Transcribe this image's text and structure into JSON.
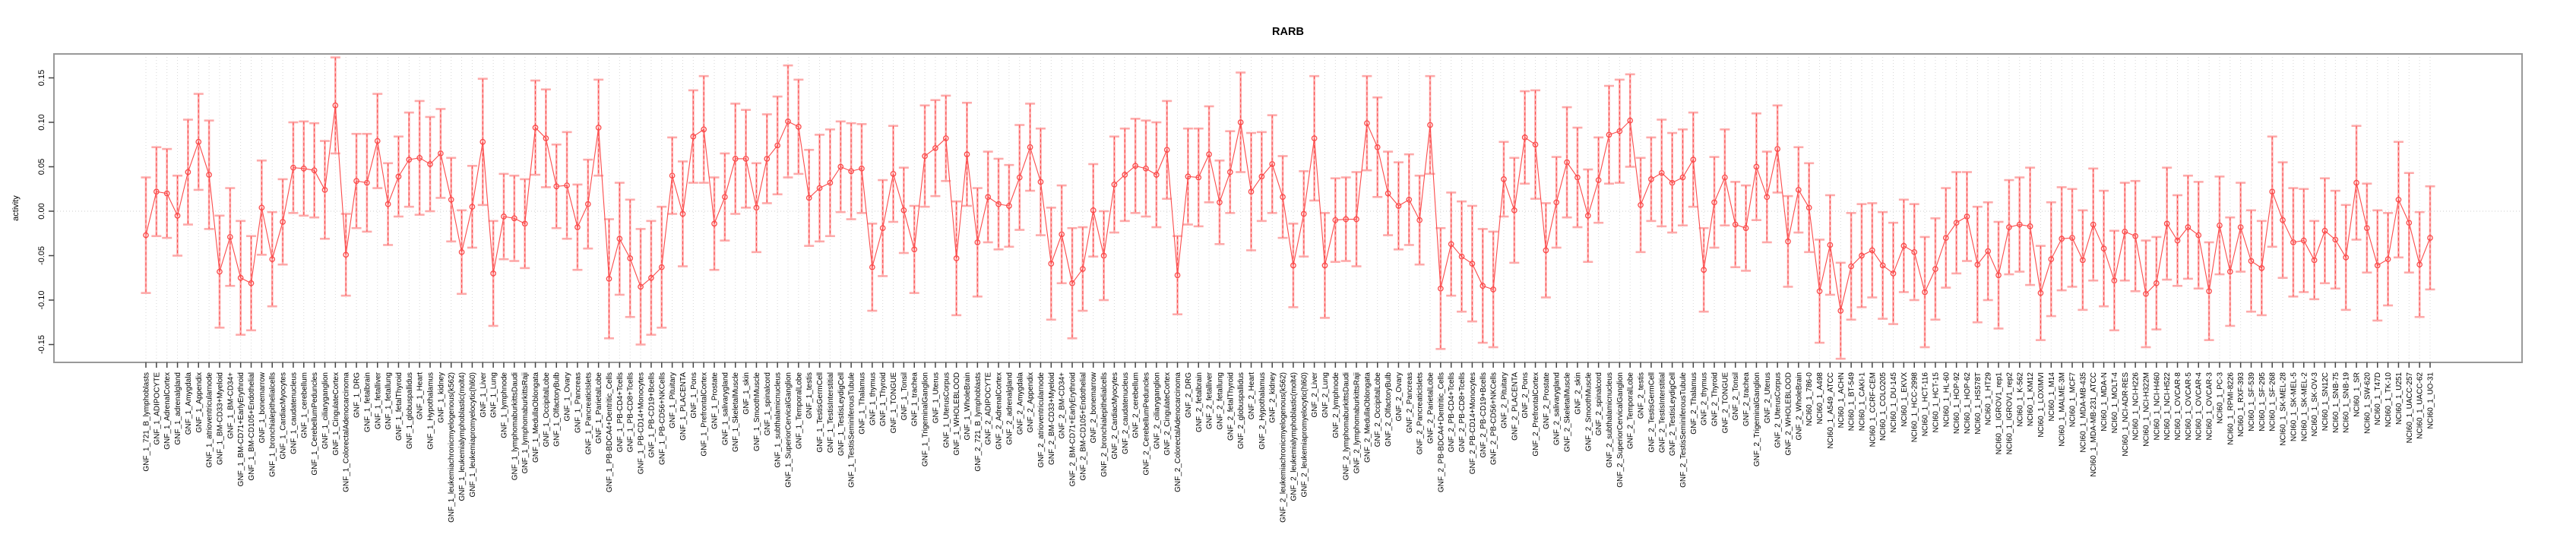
{
  "title": "RARB",
  "axes": {
    "ylabel": "activity",
    "yticks": [
      {
        "label": "0.15",
        "value": 0.15
      },
      {
        "label": "0.10",
        "value": 0.1
      },
      {
        "label": "0.05",
        "value": 0.05
      },
      {
        "label": "0.00",
        "value": 0.0
      },
      {
        "label": "-0.05",
        "value": -0.05
      },
      {
        "label": "-0.10",
        "value": -0.1
      },
      {
        "label": "-0.15",
        "value": -0.15
      }
    ]
  },
  "colors": {
    "series_red": "#fb4b4b",
    "error_bar_pink": "#fdaaaa",
    "grid_gray": "#d8d8d8",
    "zero_line_gray": "#cccccc",
    "box_gray": "#999999",
    "tick_gray": "#444444",
    "text_black": "#000000"
  },
  "chart_data": {
    "type": "line",
    "subtype": "points-with-error-bars",
    "title": "RARB",
    "xlabel": "",
    "ylabel": "activity",
    "ylim": [
      -0.17,
      0.18
    ],
    "grid": "vertical dotted gridline at every category; dotted horizontal line at y=0",
    "legend_position": "none",
    "marker": "open-circle",
    "categories": [
      "GNF_1_721_B_lymphoblasts",
      "GNF_1_ADIPOCYTE",
      "GNF_1_AdrenalCortex",
      "GNF_1_adrenalgland",
      "GNF_1_Amygdala",
      "GNF_1_Appendix",
      "GNF_1_atrioventricularnode",
      "GNF_1_BM-CD33+Myeloid",
      "GNF_1_BM-CD34+",
      "GNF_1_BM-CD71+EarlyErythroid",
      "GNF_1_BM-CD105+Endothelial",
      "GNF_1_bonemarrow",
      "GNF_1_bronchialepithelialcells",
      "GNF_1_CardiacMyocytes",
      "GNF_1_caudatenucleus",
      "GNF_1_cerebellum",
      "GNF_1_CerebellumPeduncles",
      "GNF_1_ciliaryganglion",
      "GNF_1_CingulateCortex",
      "GNF_1_ColorectalAdenocarcinoma",
      "GNF_1_DRG",
      "GNF_1_fetalbrain",
      "GNF_1_fetalliver",
      "GNF_1_fetallung",
      "GNF_1_fetalThyroid",
      "GNF_1_globuspallidus",
      "GNF_1_Heart",
      "GNF_1_Hypothalamus",
      "GNF_1_kidney",
      "GNF_1_leukemiachronicmyelogenous(k562)",
      "GNF_1_leukemialymphoblastic(molt4)",
      "GNF_1_leukemiapromyelocytic(hl60)",
      "GNF_1_Liver",
      "GNF_1_Lung",
      "GNF_1_lymphnode",
      "GNF_1_lymphomaburkittsDaudi",
      "GNF_1_lymphomaburkittsRaji",
      "GNF_1_MedullaOblongata",
      "GNF_1_OccipitalLobe",
      "GNF_1_OlfactoryBulb",
      "GNF_1_Ovary",
      "GNF_1_Pancreas",
      "GNF_1_PancreaticIslets",
      "GNF_1_ParietalLobe",
      "GNF_1_PB-BDCA4+Dentritic_Cells",
      "GNF_1_PB-CD4+Tcells",
      "GNF_1_PB-CD8+Tcells",
      "GNF_1_PB-CD14+Monocytes",
      "GNF_1_PB-CD19+Bcells",
      "GNF_1_PB-CD56+NKCells",
      "GNF_1_Pituitary",
      "GNF_1_PLACENTA",
      "GNF_1_Pons",
      "GNF_1_PrefrontalCortex",
      "GNF_1_Prostate",
      "GNF_1_salivarygland",
      "GNF_1_SkeletalMuscle",
      "GNF_1_skin",
      "GNF_1_SmoothMuscle",
      "GNF_1_spinalcord",
      "GNF_1_subthalamicnucleus",
      "GNF_1_SuperiorCervicalGanglion",
      "GNF_1_TemporalLobe",
      "GNF_1_testis",
      "GNF_1_TestisGermCell",
      "GNF_1_TestisInterstitial",
      "GNF_1_TestisLeydigCell",
      "GNF_1_TestisSeminiferousTubule",
      "GNF_1_Thalamus",
      "GNF_1_thymus",
      "GNF_1_Thyroid",
      "GNF_1_TONGUE",
      "GNF_1_Tonsil",
      "GNF_1_trachea",
      "GNF_1_TrigeminalGanglion",
      "GNF_1_Uterus",
      "GNF_1_UterusCorpus",
      "GNF_1_WHOLEBLOOD",
      "GNF_1_WholeBrain",
      "GNF_2_721_B_lymphoblasts",
      "GNF_2_ADIPOCYTE",
      "GNF_2_AdrenalCortex",
      "GNF_2_adrenalgland",
      "GNF_2_Amygdala",
      "GNF_2_Appendix",
      "GNF_2_atrioventricularnode",
      "GNF_2_BM-CD33+Myeloid",
      "GNF_2_BM-CD34+",
      "GNF_2_BM-CD71+EarlyErythroid",
      "GNF_2_BM-CD105+Endothelial",
      "GNF_2_bonemarrow",
      "GNF_2_bronchialepithelialcells",
      "GNF_2_CardiacMyocytes",
      "GNF_2_caudatenucleus",
      "GNF_2_cerebellum",
      "GNF_2_CerebellumPeduncles",
      "GNF_2_ciliaryganglion",
      "GNF_2_CingulateCortex",
      "GNF_2_ColorectalAdenocarcinoma",
      "GNF_2_DRG",
      "GNF_2_fetalbrain",
      "GNF_2_fetalliver",
      "GNF_2_fetallung",
      "GNF_2_fetalThyroid",
      "GNF_2_globuspallidus",
      "GNF_2_Heart",
      "GNF_2_Hypothalamus",
      "GNF_2_kidney",
      "GNF_2_leukemiachronicmyelogenous(k562)",
      "GNF_2_leukemialymphoblastic(molt4)",
      "GNF_2_leukemiapromyelocytic(hl60)",
      "GNF_2_Liver",
      "GNF_2_Lung",
      "GNF_2_lymphnode",
      "GNF_2_lymphomaburkittsDaudi",
      "GNF_2_lymphomaburkittsRaji",
      "GNF_2_MedullaOblongata",
      "GNF_2_OccipitalLobe",
      "GNF_2_OlfactoryBulb",
      "GNF_2_Ovary",
      "GNF_2_Pancreas",
      "GNF_2_PancreaticIslets",
      "GNF_2_ParietalLobe",
      "GNF_2_PB-BDCA4+Dentritic_Cells",
      "GNF_2_PB-CD4+Tcells",
      "GNF_2_PB-CD8+Tcells",
      "GNF_2_PB-CD14+Monocytes",
      "GNF_2_PB-CD19+Bcells",
      "GNF_2_PB-CD56+NKCells",
      "GNF_2_Pituitary",
      "GNF_2_PLACENTA",
      "GNF_2_Pons",
      "GNF_2_PrefrontalCortex",
      "GNF_2_Prostate",
      "GNF_2_salivarygland",
      "GNF_2_SkeletalMuscle",
      "GNF_2_skin",
      "GNF_2_SmoothMuscle",
      "GNF_2_spinalcord",
      "GNF_2_subthalamicnucleus",
      "GNF_2_SuperiorCervicalGanglion",
      "GNF_2_TemporalLobe",
      "GNF_2_testis",
      "GNF_2_TestisGermCell",
      "GNF_2_TestisInterstitial",
      "GNF_2_TestisLeydigCell",
      "GNF_2_TestisSeminiferousTubule",
      "GNF_2_Thalamus",
      "GNF_2_thymus",
      "GNF_2_Thyroid",
      "GNF_2_TONGUE",
      "GNF_2_Tonsil",
      "GNF_2_trachea",
      "GNF_2_TrigeminalGanglion",
      "GNF_2_Uterus",
      "GNF_2_UterusCorpus",
      "GNF_2_WHOLEBLOOD",
      "GNF_2_WholeBrain",
      "NCI60_1_786-0",
      "NCI60_1_A498",
      "NCI60_1_A549_ATCC",
      "NCI60_1_ACHN",
      "NCI60_1_BT-549",
      "NCI60_1_CAKI-1",
      "NCI60_1_CCRF-CEM",
      "NCI60_1_COLO205",
      "NCI60_1_DU-145",
      "NCI60_1_EKVX",
      "NCI60_1_HCC-2998",
      "NCI60_1_HCT-116",
      "NCI60_1_HCT-15",
      "NCI60_1_HL-60",
      "NCI60_1_HOP-92",
      "NCI60_1_HOP-62",
      "NCI60_1_HS578T",
      "NCI60_1_HT29",
      "NCI60_1_IGROV1_rep1",
      "NCI60_1_IGROV1_rep2",
      "NCI60_1_K-562",
      "NCI60_1_KM12",
      "NCI60_1_LOXIMVI",
      "NCI60_1_M14",
      "NCI60_1_MALME-3M",
      "NCI60_1_MCF7",
      "NCI60_1_MDA-MB-435",
      "NCI60_1_MDA-MB-231_ATCC",
      "NCI60_1_MDA-N",
      "NCI60_1_MOLT-4",
      "NCI60_1_NCI-ADR-RES",
      "NCI60_1_NCI-H226",
      "NCI60_1_NCI-H322M",
      "NCI60_1_NCI-H460",
      "NCI60_1_NCI-H522",
      "NCI60_1_OVCAR-8",
      "NCI60_1_OVCAR-5",
      "NCI60_1_OVCAR-4",
      "NCI60_1_OVCAR-3",
      "NCI60_1_PC-3",
      "NCI60_1_RPMI-8226",
      "NCI60_1_RXF-393",
      "NCI60_1_SF-539",
      "NCI60_1_SF-295",
      "NCI60_1_SF-268",
      "NCI60_1_SK-MEL-28",
      "NCI60_1_SK-MEL-5",
      "NCI60_1_SK-MEL-2",
      "NCI60_1_SK-OV-3",
      "NCI60_1_SN12C",
      "NCI60_1_SNB-75",
      "NCI60_1_SNB-19",
      "NCI60_1_SR",
      "NCI60_1_SW-620",
      "NCI60_1_T47D",
      "NCI60_1_TK-10",
      "NCI60_1_U251",
      "NCI60_1_UACC-257",
      "NCI60_1_UACC-62",
      "NCI60_1_UO-31"
    ],
    "series": [
      {
        "name": "activity",
        "values": [
          -0.027,
          0.022,
          0.02,
          -0.005,
          0.044,
          0.078,
          0.041,
          -0.068,
          -0.029,
          -0.075,
          -0.081,
          0.004,
          -0.054,
          -0.012,
          0.049,
          0.048,
          0.046,
          0.024,
          0.119,
          -0.049,
          0.034,
          0.032,
          0.079,
          0.008,
          0.039,
          0.058,
          0.06,
          0.053,
          0.065,
          0.013,
          -0.046,
          0.005,
          0.078,
          -0.07,
          -0.006,
          -0.008,
          -0.014,
          0.094,
          0.082,
          0.028,
          0.029,
          -0.018,
          0.008,
          0.094,
          -0.076,
          -0.031,
          -0.053,
          -0.085,
          -0.075,
          -0.063,
          0.04,
          -0.003,
          0.084,
          0.092,
          -0.014,
          0.016,
          0.059,
          0.059,
          0.004,
          0.059,
          0.074,
          0.101,
          0.095,
          0.015,
          0.026,
          0.032,
          0.05,
          0.045,
          0.048,
          -0.063,
          -0.019,
          0.042,
          0.001,
          -0.043,
          0.062,
          0.071,
          0.082,
          -0.053,
          0.064,
          -0.035,
          0.016,
          0.008,
          0.006,
          0.038,
          0.072,
          0.033,
          -0.059,
          -0.026,
          -0.081,
          -0.065,
          0.001,
          -0.05,
          0.03,
          0.041,
          0.051,
          0.048,
          0.041,
          0.069,
          -0.072,
          0.039,
          0.038,
          0.064,
          0.01,
          0.044,
          0.1,
          0.022,
          0.039,
          0.053,
          0.016,
          -0.061,
          -0.003,
          0.082,
          -0.061,
          -0.01,
          -0.009,
          -0.009,
          0.099,
          0.072,
          0.02,
          0.006,
          0.013,
          -0.01,
          0.097,
          -0.087,
          -0.037,
          -0.051,
          -0.059,
          -0.084,
          -0.088,
          0.036,
          0.001,
          0.083,
          0.075,
          -0.044,
          0.01,
          0.055,
          0.038,
          -0.005,
          0.035,
          0.086,
          0.09,
          0.102,
          0.007,
          0.036,
          0.043,
          0.032,
          0.038,
          0.058,
          -0.066,
          0.01,
          0.038,
          -0.015,
          -0.019,
          0.05,
          0.016,
          0.07,
          -0.034,
          0.024,
          0.004,
          -0.09,
          -0.038,
          -0.112,
          -0.062,
          -0.05,
          -0.044,
          -0.061,
          -0.07,
          -0.039,
          -0.046,
          -0.091,
          -0.065,
          -0.03,
          -0.013,
          -0.006,
          -0.06,
          -0.045,
          -0.072,
          -0.018,
          -0.015,
          -0.017,
          -0.092,
          -0.054,
          -0.031,
          -0.03,
          -0.055,
          -0.015,
          -0.042,
          -0.078,
          -0.023,
          -0.028,
          -0.093,
          -0.081,
          -0.014,
          -0.033,
          -0.018,
          -0.027,
          -0.09,
          -0.016,
          -0.068,
          -0.018,
          -0.056,
          -0.064,
          0.022,
          -0.01,
          -0.035,
          -0.033,
          -0.055,
          -0.022,
          -0.032,
          -0.052,
          0.032,
          -0.019,
          -0.061,
          -0.054,
          0.013,
          -0.013,
          -0.06,
          -0.03
        ],
        "errors": [
          0.065,
          0.05,
          0.05,
          0.045,
          0.059,
          0.054,
          0.061,
          0.063,
          0.055,
          0.064,
          0.053,
          0.053,
          0.053,
          0.048,
          0.051,
          0.053,
          0.053,
          0.055,
          0.054,
          0.046,
          0.053,
          0.055,
          0.053,
          0.046,
          0.045,
          0.053,
          0.064,
          0.053,
          0.05,
          0.047,
          0.047,
          0.046,
          0.071,
          0.059,
          0.048,
          0.048,
          0.05,
          0.053,
          0.055,
          0.047,
          0.06,
          0.048,
          0.05,
          0.054,
          0.067,
          0.063,
          0.066,
          0.065,
          0.064,
          0.068,
          0.043,
          0.059,
          0.052,
          0.06,
          0.052,
          0.049,
          0.062,
          0.055,
          0.05,
          0.05,
          0.055,
          0.063,
          0.053,
          0.054,
          0.06,
          0.06,
          0.051,
          0.054,
          0.05,
          0.049,
          0.054,
          0.054,
          0.048,
          0.049,
          0.057,
          0.054,
          0.048,
          0.064,
          0.058,
          0.061,
          0.051,
          0.051,
          0.046,
          0.059,
          0.049,
          0.06,
          0.063,
          0.055,
          0.062,
          0.047,
          0.052,
          0.05,
          0.054,
          0.052,
          0.053,
          0.054,
          0.059,
          0.055,
          0.044,
          0.054,
          0.055,
          0.054,
          0.047,
          0.046,
          0.056,
          0.066,
          0.05,
          0.055,
          0.046,
          0.047,
          0.048,
          0.07,
          0.059,
          0.047,
          0.047,
          0.053,
          0.053,
          0.056,
          0.047,
          0.049,
          0.051,
          0.05,
          0.055,
          0.068,
          0.058,
          0.062,
          0.065,
          0.064,
          0.065,
          0.042,
          0.059,
          0.052,
          0.061,
          0.053,
          0.051,
          0.062,
          0.056,
          0.052,
          0.048,
          0.055,
          0.058,
          0.052,
          0.053,
          0.047,
          0.06,
          0.056,
          0.054,
          0.053,
          0.047,
          0.051,
          0.054,
          0.048,
          0.048,
          0.06,
          0.051,
          0.049,
          0.051,
          0.048,
          0.05,
          0.058,
          0.056,
          0.054,
          0.06,
          0.058,
          0.053,
          0.06,
          0.057,
          0.052,
          0.054,
          0.062,
          0.057,
          0.056,
          0.057,
          0.05,
          0.065,
          0.055,
          0.06,
          0.053,
          0.053,
          0.066,
          0.053,
          0.064,
          0.058,
          0.055,
          0.056,
          0.063,
          0.065,
          0.056,
          0.055,
          0.062,
          0.06,
          0.052,
          0.063,
          0.051,
          0.058,
          0.06,
          0.055,
          0.055,
          0.061,
          0.05,
          0.057,
          0.053,
          0.062,
          0.065,
          0.061,
          0.058,
          0.044,
          0.059,
          0.055,
          0.059,
          0.064,
          0.05,
          0.062,
          0.052,
          0.065,
          0.056,
          0.059,
          0.058
        ]
      }
    ]
  }
}
